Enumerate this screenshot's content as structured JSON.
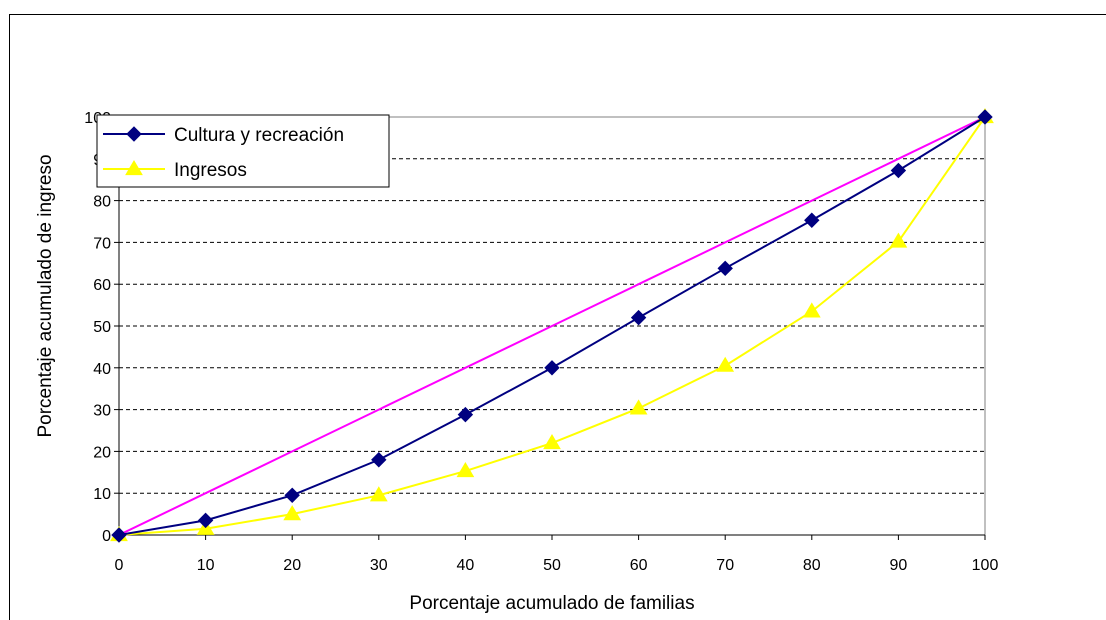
{
  "chart_data": {
    "type": "line",
    "xlabel": "Porcentaje acumulado de familias",
    "ylabel": "Porcentaje acumulado de ingreso",
    "xlim": [
      0,
      100
    ],
    "ylim": [
      0,
      100
    ],
    "x": [
      0,
      10,
      20,
      30,
      40,
      50,
      60,
      70,
      80,
      90,
      100
    ],
    "x_ticks": [
      "0",
      "10",
      "20",
      "30",
      "40",
      "50",
      "60",
      "70",
      "80",
      "90",
      "100"
    ],
    "y_ticks": [
      "0",
      "10",
      "20",
      "30",
      "40",
      "50",
      "60",
      "70",
      "80",
      "90",
      "100"
    ],
    "grid": "horizontal dashed",
    "legend_position": "top-left",
    "series": [
      {
        "name": "Cultura y recreación",
        "color": "#000080",
        "marker": "diamond",
        "values": [
          0,
          3.5,
          9.5,
          18,
          28.8,
          40,
          52,
          63.8,
          75.3,
          87.2,
          100
        ]
      },
      {
        "name": "Ingresos",
        "color": "#FFFF00",
        "marker": "triangle",
        "values": [
          0,
          1.5,
          5,
          9.5,
          15.3,
          22,
          30.3,
          40.5,
          53.5,
          70.2,
          100
        ]
      }
    ],
    "reference_line": {
      "color": "#FF00FF",
      "values": [
        0,
        10,
        20,
        30,
        40,
        50,
        60,
        70,
        80,
        90,
        100
      ]
    }
  }
}
